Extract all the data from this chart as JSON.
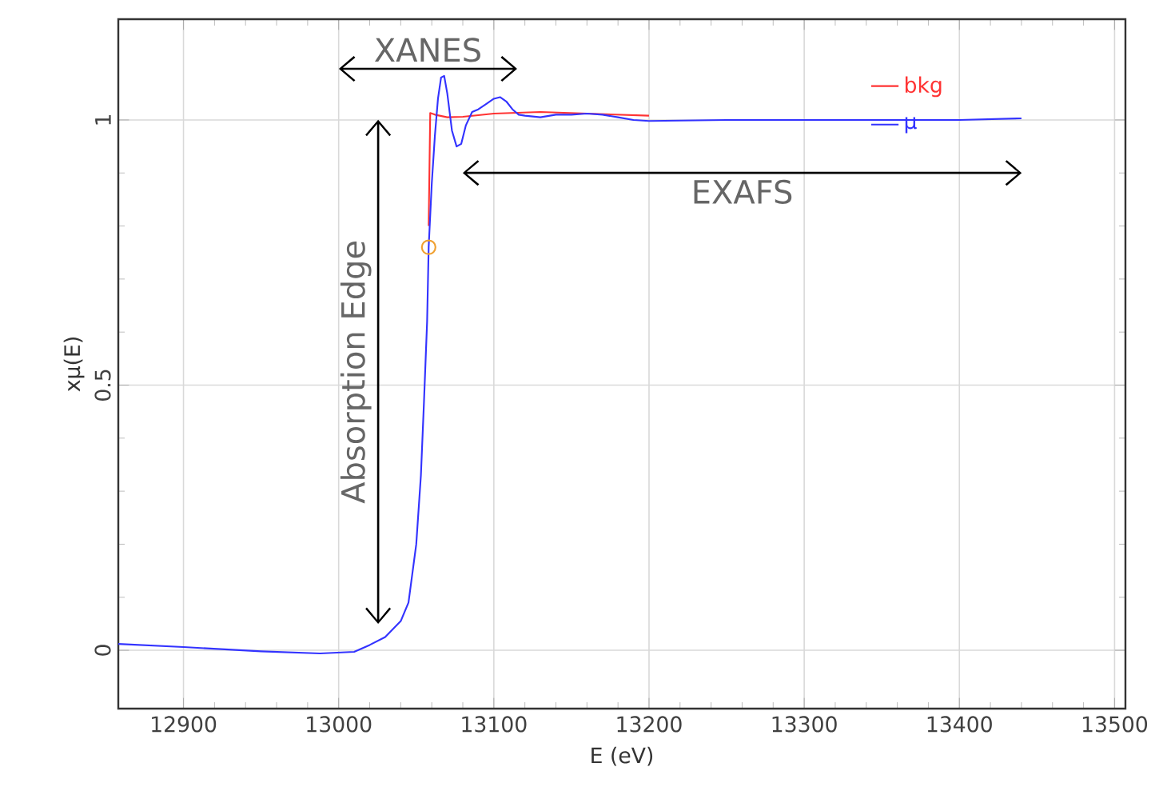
{
  "chart_data": {
    "type": "line",
    "xlabel": "E (eV)",
    "ylabel": "xμ(E)",
    "xlim": [
      12858,
      13507
    ],
    "ylim": [
      -0.11,
      1.19
    ],
    "xticks": [
      12900,
      13000,
      13100,
      13200,
      13300,
      13400,
      13500
    ],
    "yticks": [
      0,
      0.5,
      1
    ],
    "grid": true,
    "legend": "top right",
    "series": [
      {
        "name": "bkg",
        "color": "#ff3333",
        "x": [
          13058,
          13059,
          13062,
          13070,
          13080,
          13100,
          13130,
          13200
        ],
        "values": [
          0.8,
          1.013,
          1.01,
          1.005,
          1.006,
          1.012,
          1.015,
          1.008
        ]
      },
      {
        "name": "μ",
        "color": "#3333ff",
        "x": [
          12858,
          12900,
          12950,
          12988,
          13010,
          13020,
          13030,
          13040,
          13045,
          13050,
          13053,
          13055,
          13057,
          13058,
          13060,
          13062,
          13064,
          13066,
          13068,
          13070,
          13073,
          13076,
          13079,
          13082,
          13086,
          13090,
          13095,
          13100,
          13104,
          13108,
          13112,
          13116,
          13120,
          13130,
          13140,
          13150,
          13160,
          13170,
          13180,
          13190,
          13200,
          13250,
          13300,
          13350,
          13400,
          13440
        ],
        "values": [
          0.012,
          0.006,
          -0.002,
          -0.006,
          -0.003,
          0.01,
          0.025,
          0.055,
          0.09,
          0.2,
          0.33,
          0.47,
          0.62,
          0.76,
          0.88,
          0.97,
          1.04,
          1.08,
          1.083,
          1.05,
          0.98,
          0.95,
          0.955,
          0.99,
          1.015,
          1.02,
          1.03,
          1.04,
          1.043,
          1.035,
          1.02,
          1.01,
          1.008,
          1.005,
          1.01,
          1.01,
          1.012,
          1.01,
          1.005,
          1.0,
          0.998,
          1.0,
          1.0,
          1.0,
          1.0,
          1.003
        ]
      },
      {
        "type": "scatter",
        "marker": "circle",
        "color": "#f0a030",
        "x": [
          13058
        ],
        "values": [
          0.76
        ]
      }
    ],
    "annotations": [
      "XANES",
      "EXAFS",
      "Absorption Edge"
    ]
  }
}
